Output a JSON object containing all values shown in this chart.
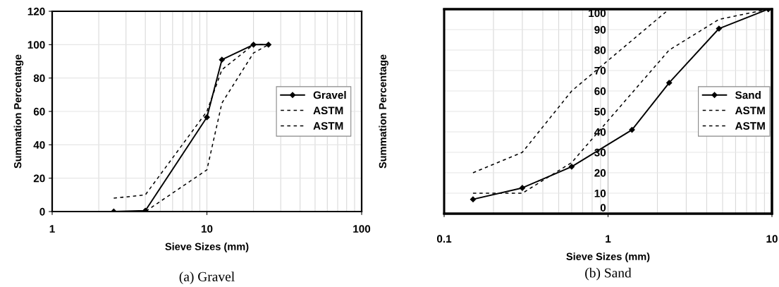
{
  "chart_data": [
    {
      "type": "line",
      "xlabel": "Sieve Sizes (mm)",
      "ylabel": "Summation Percentage",
      "annotations": [
        "(a) Gravel"
      ],
      "log": "x",
      "xlim": [
        1,
        100
      ],
      "xticks": [
        1,
        10,
        100
      ],
      "ylim": [
        0,
        120
      ],
      "yticks": [
        0,
        20,
        40,
        60,
        80,
        100,
        120
      ],
      "grid": true,
      "legend": "right",
      "series": [
        {
          "name": "Gravel",
          "color": "#000000",
          "marker": "diamond",
          "line_style": "solid",
          "x": [
            2.5,
            4,
            10,
            12.5,
            20,
            25
          ],
          "values": [
            0,
            0.5,
            56.5,
            91,
            100,
            100
          ]
        },
        {
          "name": "ASTM",
          "color": "#000000",
          "marker": "none",
          "line_style": "dashed",
          "x": [
            2.5,
            4,
            10,
            12.5,
            20,
            25
          ],
          "values": [
            8,
            10,
            60,
            85,
            100,
            100
          ]
        },
        {
          "name": "ASTM",
          "color": "#000000",
          "marker": "none",
          "line_style": "dashed",
          "x": [
            2.5,
            4,
            10,
            12.5,
            20,
            25
          ],
          "values": [
            0,
            0,
            25,
            65,
            95,
            100
          ]
        }
      ]
    },
    {
      "type": "line",
      "xlabel": "Sieve Sizes (mm)",
      "ylabel": "Summation Percentage",
      "annotations": [
        "(b) Sand"
      ],
      "log": "x",
      "xlim": [
        0.1,
        10
      ],
      "xticks": [
        0.1,
        1,
        10
      ],
      "ylim": [
        0,
        100
      ],
      "yticks": [
        0,
        10,
        20,
        30,
        40,
        50,
        60,
        70,
        80,
        90,
        100
      ],
      "grid": true,
      "legend": "right",
      "series": [
        {
          "name": "Sand",
          "color": "#000000",
          "marker": "diamond",
          "line_style": "solid",
          "x": [
            0.15,
            0.3,
            0.6,
            1.4,
            2.36,
            4.75,
            9.5
          ],
          "values": [
            7,
            12.6,
            23,
            41,
            64,
            90.5,
            100
          ]
        },
        {
          "name": "ASTM",
          "color": "#000000",
          "marker": "none",
          "line_style": "dashed",
          "x": [
            0.15,
            0.3,
            0.6,
            2.36,
            4.75,
            9.5
          ],
          "values": [
            20,
            30,
            60,
            100,
            100,
            100
          ]
        },
        {
          "name": "ASTM",
          "color": "#000000",
          "marker": "none",
          "line_style": "dashed",
          "x": [
            0.15,
            0.3,
            0.6,
            2.36,
            4.75,
            9.5
          ],
          "values": [
            10,
            10,
            25,
            80,
            95,
            100
          ]
        }
      ]
    }
  ]
}
